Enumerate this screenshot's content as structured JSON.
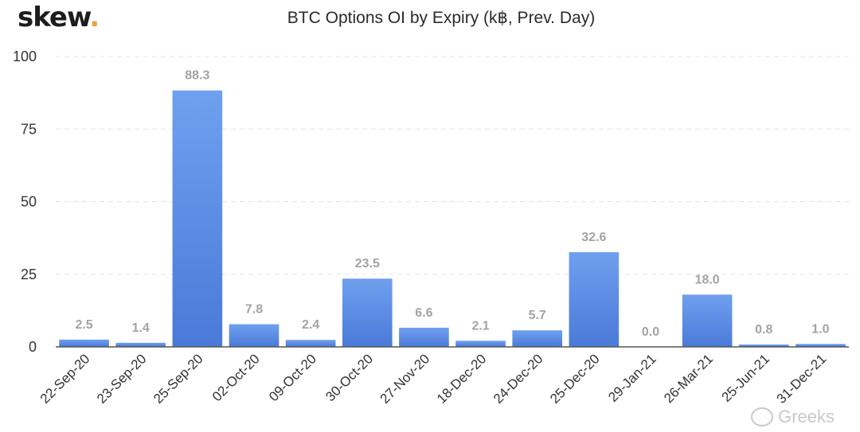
{
  "header": {
    "logo_text": "skew",
    "logo_dot": ".",
    "watermark": "Greeks",
    "watermark_icon": "wechat-icon"
  },
  "colors": {
    "bar_top": "#6fa0ef",
    "bar_bottom": "#4a7ad8",
    "label": "#a3a3a3",
    "grid": "#e3e3e3",
    "axis": "#555555"
  },
  "chart_data": {
    "type": "bar",
    "title": "BTC Options OI by Expiry (k฿, Prev. Day)",
    "xlabel": "",
    "ylabel": "",
    "ylim": [
      0,
      100
    ],
    "yticks": [
      0,
      25,
      50,
      75,
      100
    ],
    "grid": true,
    "categories": [
      "22-Sep-20",
      "23-Sep-20",
      "25-Sep-20",
      "02-Oct-20",
      "09-Oct-20",
      "30-Oct-20",
      "27-Nov-20",
      "18-Dec-20",
      "24-Dec-20",
      "25-Dec-20",
      "29-Jan-21",
      "26-Mar-21",
      "25-Jun-21",
      "31-Dec-21"
    ],
    "values": [
      2.5,
      1.4,
      88.3,
      7.8,
      2.4,
      23.5,
      6.6,
      2.1,
      5.7,
      32.6,
      0.0,
      18.0,
      0.8,
      1.0
    ],
    "data_labels": [
      "2.5",
      "1.4",
      "88.3",
      "7.8",
      "2.4",
      "23.5",
      "6.6",
      "2.1",
      "5.7",
      "32.6",
      "0.0",
      "18.0",
      "0.8",
      "1.0"
    ]
  }
}
